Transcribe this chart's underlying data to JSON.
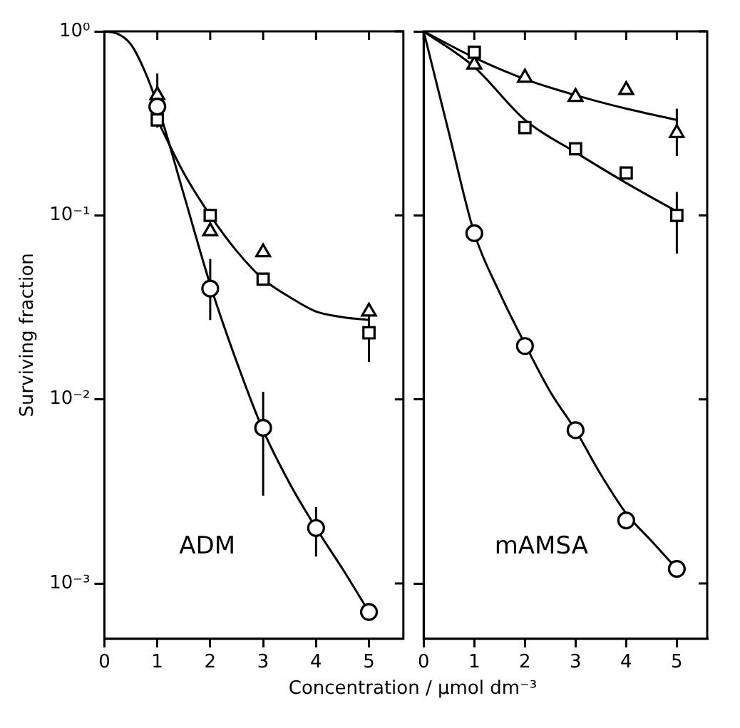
{
  "chart_data": [
    {
      "type": "scatter",
      "ylabel": "Surviving fraction",
      "xlabel": "Concentration / μmol dm⁻³",
      "annotations": [
        "ADM"
      ],
      "log": "y",
      "grid": false,
      "legend": false,
      "xlim": [
        0,
        5.65
      ],
      "xticks": [
        0,
        1,
        2,
        3,
        4,
        5
      ],
      "ylim": [
        0.0005,
        1
      ],
      "yticks": [
        {
          "value": 1,
          "label": "10⁰"
        },
        {
          "value": 0.1,
          "label": "10⁻¹"
        },
        {
          "value": 0.01,
          "label": "10⁻²"
        },
        {
          "value": 0.001,
          "label": "10⁻³"
        }
      ],
      "series": [
        {
          "type": "scatter",
          "marker": "circle",
          "color": "#000000",
          "x": [
            1,
            2,
            3,
            4,
            5
          ],
          "values": [
            0.39,
            0.04,
            0.007,
            0.002,
            0.0007
          ],
          "errors": [
            [
              0.3,
              0.59
            ],
            [
              0.027,
              0.058
            ],
            [
              0.003,
              0.011
            ],
            [
              0.0014,
              0.0026
            ],
            null
          ]
        },
        {
          "type": "scatter",
          "marker": "square",
          "color": "#000000",
          "x": [
            1,
            2,
            3,
            5
          ],
          "values": [
            0.33,
            0.1,
            0.045,
            0.023
          ],
          "errors": [
            null,
            null,
            null,
            [
              0.016,
              0.03
            ]
          ]
        },
        {
          "type": "scatter",
          "marker": "triangle",
          "color": "#000000",
          "x": [
            1,
            2,
            3,
            5
          ],
          "values": [
            0.45,
            0.082,
            0.063,
            0.03
          ]
        },
        {
          "type": "line",
          "marker": "none",
          "color": "#000000",
          "x": [
            0,
            0.25,
            0.5,
            0.75,
            1,
            1.5,
            2,
            2.5,
            3,
            3.5,
            4,
            4.5,
            5
          ],
          "values": [
            1,
            0.97,
            0.85,
            0.62,
            0.4,
            0.13,
            0.042,
            0.016,
            0.0068,
            0.0035,
            0.002,
            0.0012,
            0.0007
          ]
        },
        {
          "type": "line",
          "marker": "none",
          "color": "#000000",
          "x": [
            1,
            1.5,
            2,
            2.5,
            3,
            3.5,
            4,
            4.5,
            5
          ],
          "values": [
            0.33,
            0.17,
            0.1,
            0.064,
            0.045,
            0.036,
            0.03,
            0.028,
            0.027
          ]
        }
      ]
    },
    {
      "type": "scatter",
      "annotations": [
        "mAMSA"
      ],
      "log": "y",
      "grid": false,
      "legend": false,
      "tick_labels": "x",
      "xlim": [
        0,
        5.6
      ],
      "xticks": [
        0,
        1,
        2,
        3,
        4,
        5
      ],
      "ylim": [
        0.0005,
        1
      ],
      "yticks": [
        {
          "value": 1,
          "label": null
        },
        {
          "value": 0.1,
          "label": null
        },
        {
          "value": 0.01,
          "label": null
        },
        {
          "value": 0.001,
          "label": null
        }
      ],
      "series": [
        {
          "type": "scatter",
          "marker": "circle",
          "color": "#000000",
          "x": [
            1,
            2,
            3,
            4,
            5
          ],
          "values": [
            0.08,
            0.0195,
            0.0068,
            0.0022,
            0.0012
          ]
        },
        {
          "type": "scatter",
          "marker": "square",
          "color": "#000000",
          "x": [
            1,
            2,
            3,
            4,
            5
          ],
          "values": [
            0.77,
            0.3,
            0.23,
            0.17,
            0.1
          ],
          "errors": [
            null,
            null,
            null,
            null,
            [
              0.062,
              0.134
            ]
          ]
        },
        {
          "type": "scatter",
          "marker": "triangle",
          "color": "#000000",
          "x": [
            1,
            2,
            3,
            4,
            5
          ],
          "values": [
            0.66,
            0.56,
            0.44,
            0.48,
            0.28
          ],
          "errors": [
            null,
            null,
            null,
            null,
            [
              0.21,
              0.38
            ]
          ]
        },
        {
          "type": "line",
          "marker": "none",
          "color": "#000000",
          "x": [
            0,
            0.5,
            1,
            1.5,
            2,
            2.5,
            3,
            3.5,
            4,
            4.5,
            5
          ],
          "values": [
            1,
            0.28,
            0.08,
            0.038,
            0.02,
            0.011,
            0.0068,
            0.0039,
            0.0024,
            0.0017,
            0.0012
          ]
        },
        {
          "type": "line",
          "marker": "none",
          "color": "#000000",
          "x": [
            0,
            1,
            2,
            3,
            4,
            5
          ],
          "values": [
            1,
            0.64,
            0.33,
            0.22,
            0.15,
            0.105
          ]
        },
        {
          "type": "line",
          "marker": "none",
          "color": "#000000",
          "x": [
            0,
            1,
            2,
            3,
            4,
            5
          ],
          "values": [
            1,
            0.72,
            0.55,
            0.45,
            0.38,
            0.33
          ]
        }
      ]
    }
  ]
}
